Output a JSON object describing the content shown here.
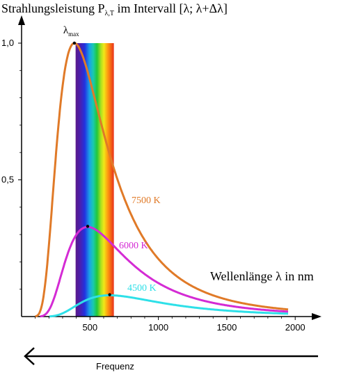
{
  "chart_data": {
    "type": "line",
    "title": "Strahlungsleistung P",
    "title_subscript": "λ,T",
    "title_suffix": " im Intervall [λ; λ+Δλ]",
    "xlabel": "Wellenlänge λ in nm",
    "ylabel": "",
    "xlim": [
      0,
      2100
    ],
    "ylim": [
      0,
      1.0
    ],
    "x_ticks": [
      500,
      1000,
      1500,
      2000
    ],
    "x_tick_labels": [
      "500",
      "1000",
      "1500",
      "2000"
    ],
    "y_ticks": [
      0.5,
      1.0
    ],
    "y_tick_labels": [
      "0,5",
      "1,0"
    ],
    "peak_label": "λ",
    "peak_label_subscript": "max",
    "spectrum_band_nm": [
      400,
      700
    ],
    "grid": false,
    "series": [
      {
        "name": "7500 K",
        "temperature_k": 7500,
        "color": "#e07a28",
        "peak_nm": 386,
        "peak_value": 1.0
      },
      {
        "name": "6000 K",
        "temperature_k": 6000,
        "color": "#d42bd4",
        "peak_nm": 483,
        "peak_value": 0.33
      },
      {
        "name": "4500 K",
        "temperature_k": 4500,
        "color": "#2ee0e8",
        "peak_nm": 644,
        "peak_value": 0.08
      }
    ],
    "frequency_label": "Frequenz"
  }
}
